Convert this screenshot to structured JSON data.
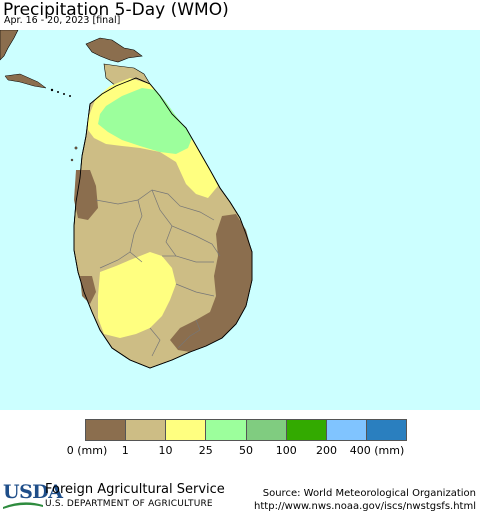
{
  "header": {
    "title": "Precipitation 5-Day (WMO)",
    "subtitle": "Apr. 16 - 20, 2023 [final]"
  },
  "legend": {
    "colors": [
      "#8b6e4e",
      "#cdbd85",
      "#ffff80",
      "#9cff9c",
      "#80cc80",
      "#33aa00",
      "#80c4ff",
      "#2a7fbf"
    ],
    "labels": [
      "0 (mm)",
      "1",
      "10",
      "25",
      "50",
      "100",
      "200",
      "400 (mm)"
    ]
  },
  "map": {
    "ocean_color": "#ccffff",
    "land_neighbor_color": "#8b6e4e"
  },
  "footer": {
    "logo_text": "USDA",
    "agency": "Foreign Agricultural Service",
    "department": "U.S. DEPARTMENT OF AGRICULTURE",
    "source": "Source: World Meteorological Organization",
    "url": "http://www.nws.noaa.gov/iscs/nwstgsfs.html"
  }
}
